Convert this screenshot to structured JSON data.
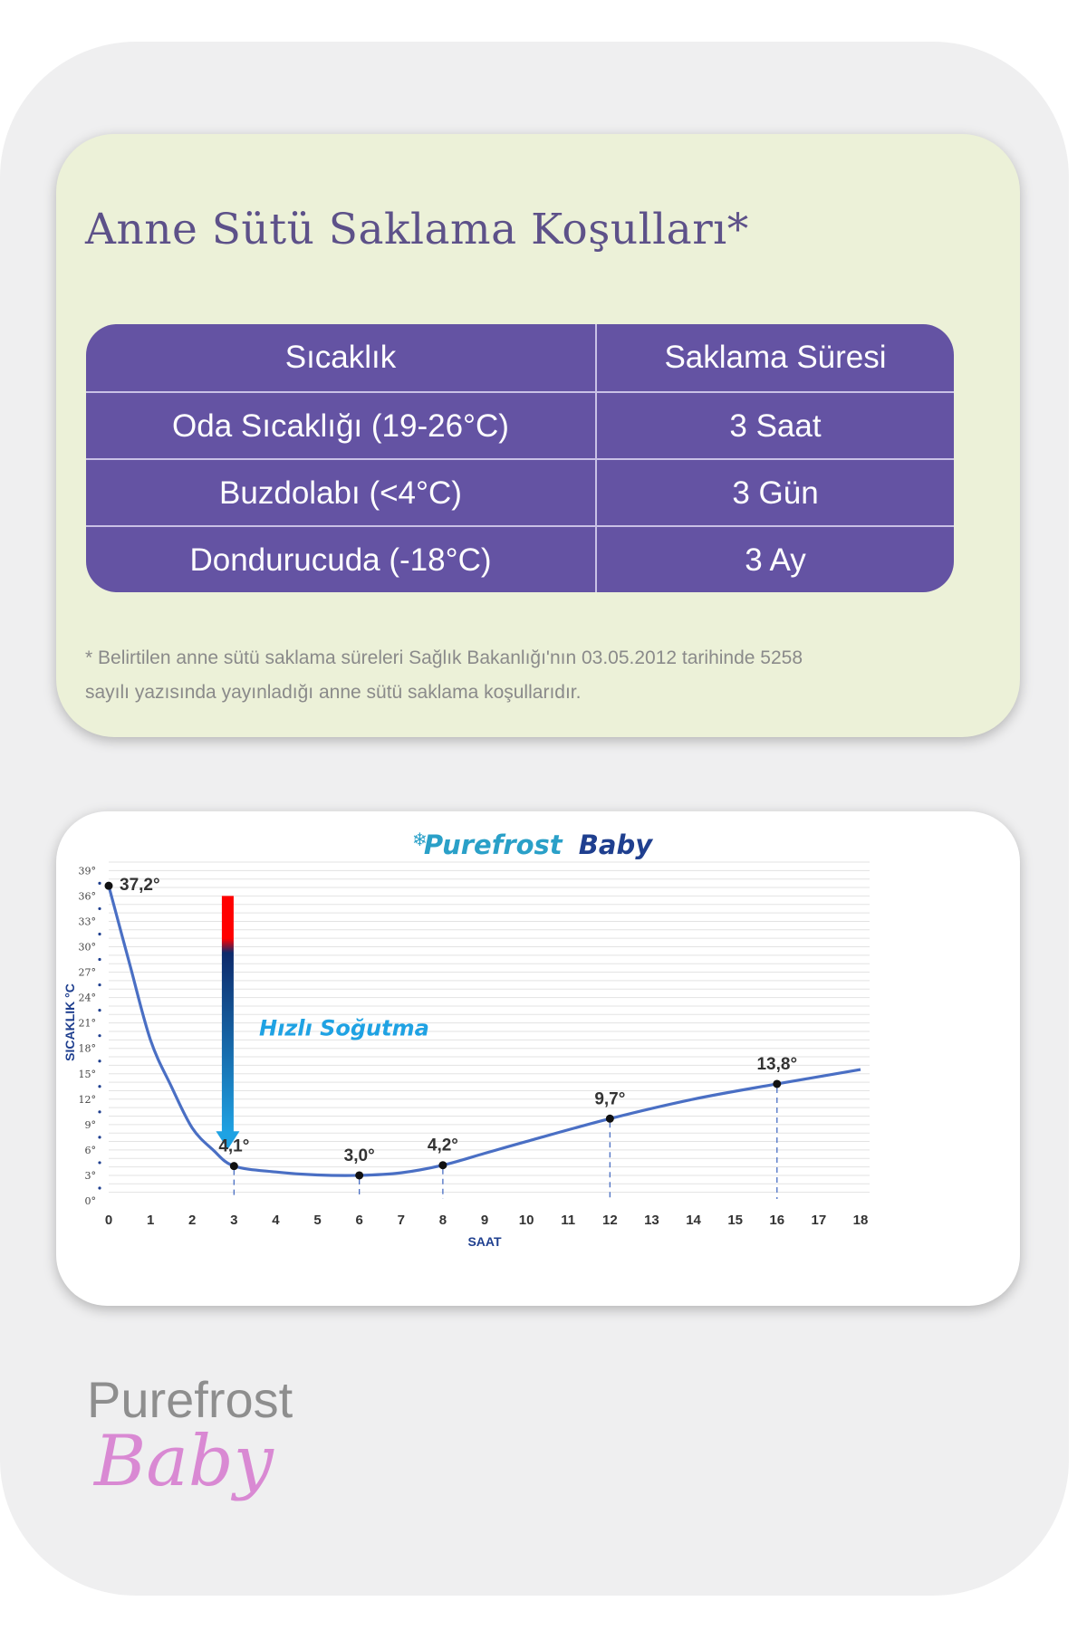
{
  "storage": {
    "title": "Anne Sütü Saklama Koşulları*",
    "headers": [
      "Sıcaklık",
      "Saklama Süresi"
    ],
    "rows": [
      [
        "Oda Sıcaklığı (19-26°C)",
        "3 Saat"
      ],
      [
        "Buzdolabı (<4°C)",
        "3 Gün"
      ],
      [
        "Dondurucuda (-18°C)",
        "3 Ay"
      ]
    ],
    "footnote_line1": "* Belirtilen anne sütü saklama süreleri Sağlık Bakanlığı'nın 03.05.2012 tarihinde 5258",
    "footnote_line2": "sayılı yazısında yayınladığı anne sütü saklama koşullarıdır."
  },
  "colors": {
    "table_purple": "#6453a3",
    "title_purple": "#5d5189",
    "card_green": "#ecf1d8",
    "curve_blue": "#4a6fc4",
    "axis_navy": "#1f3f8f",
    "brand_teal": "#2aa0c8",
    "brand_navy": "#1f3f8f",
    "arrow_top": "#ff0000",
    "arrow_mid": "#0d2a6b",
    "arrow_bottom": "#1fa2e3",
    "logo_gray": "#8e8e8e",
    "logo_pink": "#d77fd0"
  },
  "chart_data": {
    "type": "line",
    "title_brand": "Purefrost",
    "title_suffix": "Baby",
    "xlabel": "SAAT",
    "ylabel": "SICAKLIK °C",
    "xlim": [
      0,
      18
    ],
    "ylim": [
      0,
      40
    ],
    "x_ticks": [
      0,
      1,
      2,
      3,
      4,
      5,
      6,
      7,
      8,
      9,
      10,
      11,
      12,
      13,
      14,
      15,
      16,
      17,
      18
    ],
    "y_ticks": [
      0,
      3,
      6,
      9,
      12,
      15,
      18,
      21,
      24,
      27,
      30,
      33,
      36,
      39
    ],
    "y_tick_suffix": "°",
    "grid": true,
    "series": [
      {
        "x": [
          0,
          0.5,
          1,
          1.5,
          2,
          2.5,
          3,
          4,
          5,
          6,
          7,
          8,
          9,
          10,
          12,
          14,
          16,
          18
        ],
        "y": [
          37.2,
          28,
          19,
          13.5,
          8.6,
          6,
          4.1,
          3.4,
          3.05,
          3.0,
          3.3,
          4.2,
          5.6,
          7.0,
          9.7,
          12.0,
          13.8,
          15.5
        ]
      }
    ],
    "labeled_points": [
      {
        "x": 0,
        "y": 37.2,
        "label": "37,2°"
      },
      {
        "x": 3,
        "y": 4.1,
        "label": "4,1°"
      },
      {
        "x": 6,
        "y": 3.0,
        "label": "3,0°"
      },
      {
        "x": 8,
        "y": 4.2,
        "label": "4,2°"
      },
      {
        "x": 12,
        "y": 9.7,
        "label": "9,7°"
      },
      {
        "x": 16,
        "y": 13.8,
        "label": "13,8°"
      }
    ],
    "annotation": {
      "text": "Hızlı Soğutma",
      "x": 3.6,
      "y": 19.5
    },
    "arrow": {
      "x": 2.85,
      "y_start": 36,
      "y_end": 6.5
    }
  },
  "logo": {
    "word": "Purefrost",
    "script": "Baby"
  }
}
